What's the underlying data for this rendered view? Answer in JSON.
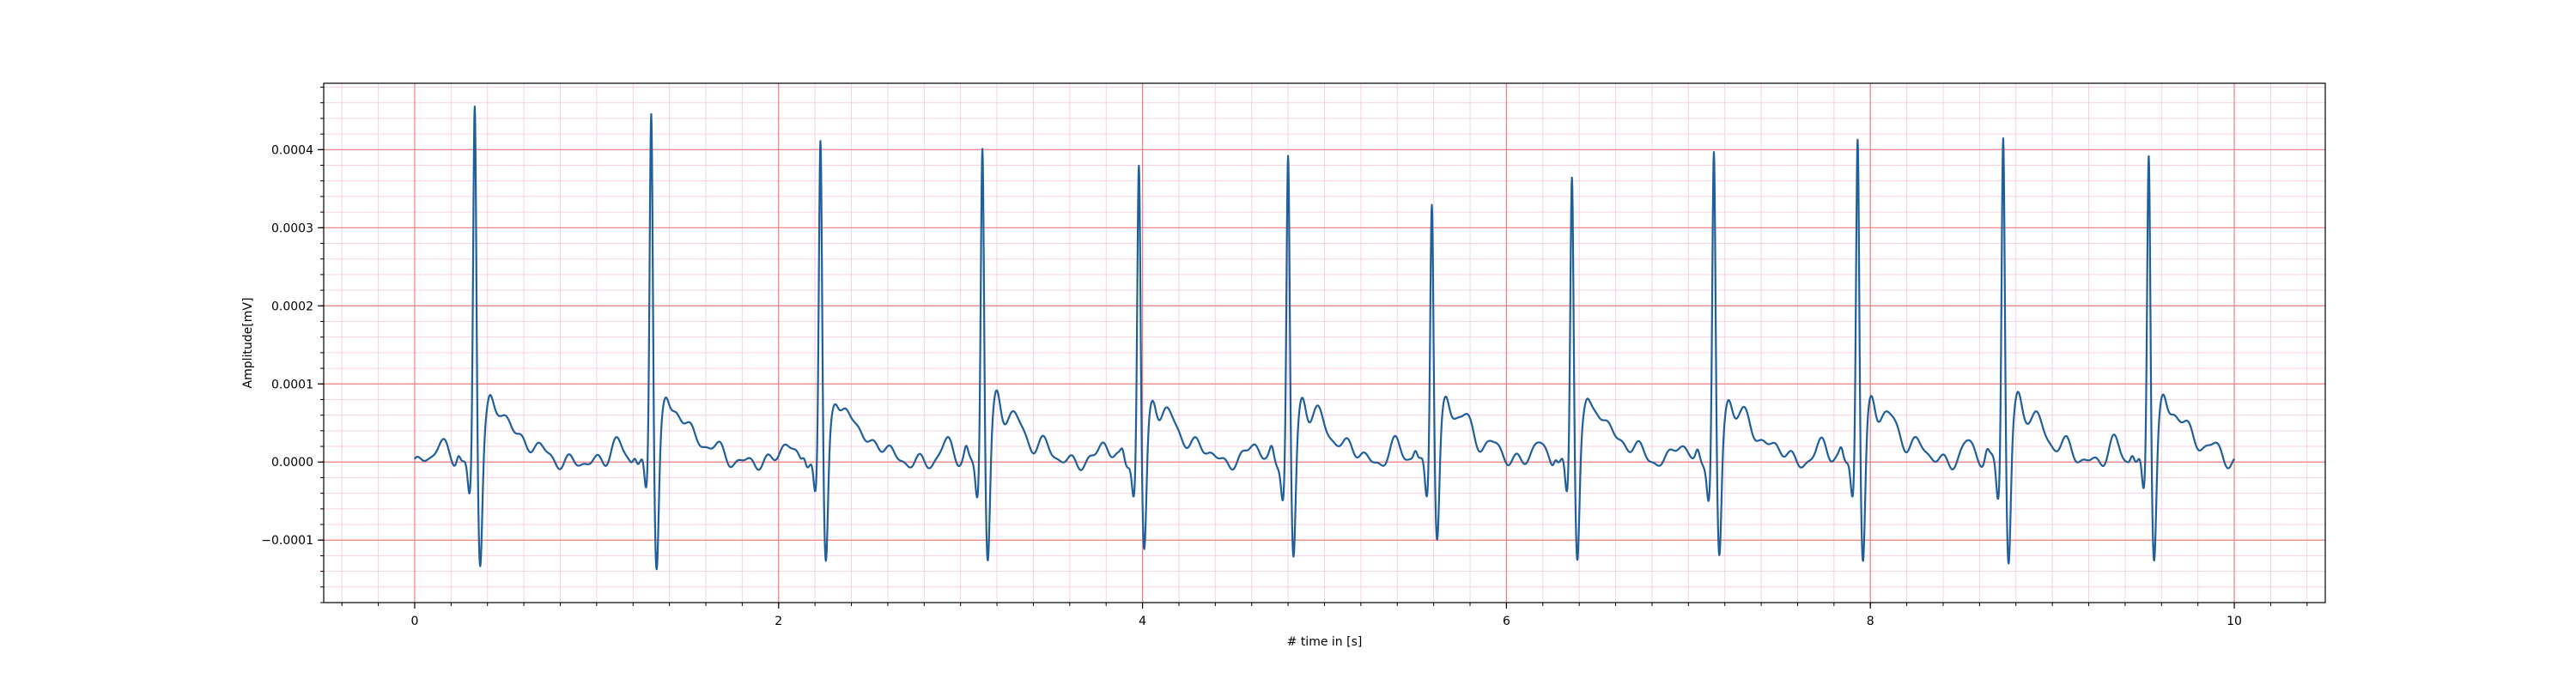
{
  "chart_data": {
    "type": "line",
    "title": "",
    "xlabel": "# time in [s]",
    "ylabel": "Amplitude[mV]",
    "xlim": [
      -0.5,
      10.5
    ],
    "ylim": [
      -0.00018,
      0.000485
    ],
    "grid": true,
    "major_grid_color": "#f08080",
    "minor_grid_color": "#f5c6e0",
    "line_color": "#1f5f9a",
    "x_major_ticks": [
      0,
      2,
      4,
      6,
      8,
      10
    ],
    "x_tick_labels": [
      "0",
      "2",
      "4",
      "6",
      "8",
      "10"
    ],
    "y_major_ticks": [
      -0.0001,
      0.0,
      0.0001,
      0.0002,
      0.0003,
      0.0004
    ],
    "y_tick_labels": [
      "−0.0001",
      "0.0000",
      "0.0001",
      "0.0002",
      "0.0003",
      "0.0004"
    ],
    "x_minor_step": 0.2,
    "y_minor_step": 2e-05,
    "beats": [
      {
        "t": 0.33,
        "r": 0.00045,
        "s": -0.000145
      },
      {
        "t": 1.3,
        "r": 0.00045,
        "s": -0.000148
      },
      {
        "t": 2.23,
        "r": 0.00041,
        "s": -0.000145
      },
      {
        "t": 3.12,
        "r": 0.000405,
        "s": -0.000138
      },
      {
        "t": 3.98,
        "r": 0.00038,
        "s": -0.000132
      },
      {
        "t": 4.8,
        "r": 0.000388,
        "s": -0.00014
      },
      {
        "t": 5.59,
        "r": 0.00034,
        "s": -0.000118
      },
      {
        "t": 6.36,
        "r": 0.000365,
        "s": -0.00014
      },
      {
        "t": 7.14,
        "r": 0.00039,
        "s": -0.00014
      },
      {
        "t": 7.93,
        "r": 0.00042,
        "s": -0.000145
      },
      {
        "t": 8.73,
        "r": 0.00042,
        "s": -0.000145
      },
      {
        "t": 9.53,
        "r": 0.000398,
        "s": -0.000135
      }
    ],
    "t_start": 0.0,
    "t_end": 10.0
  }
}
